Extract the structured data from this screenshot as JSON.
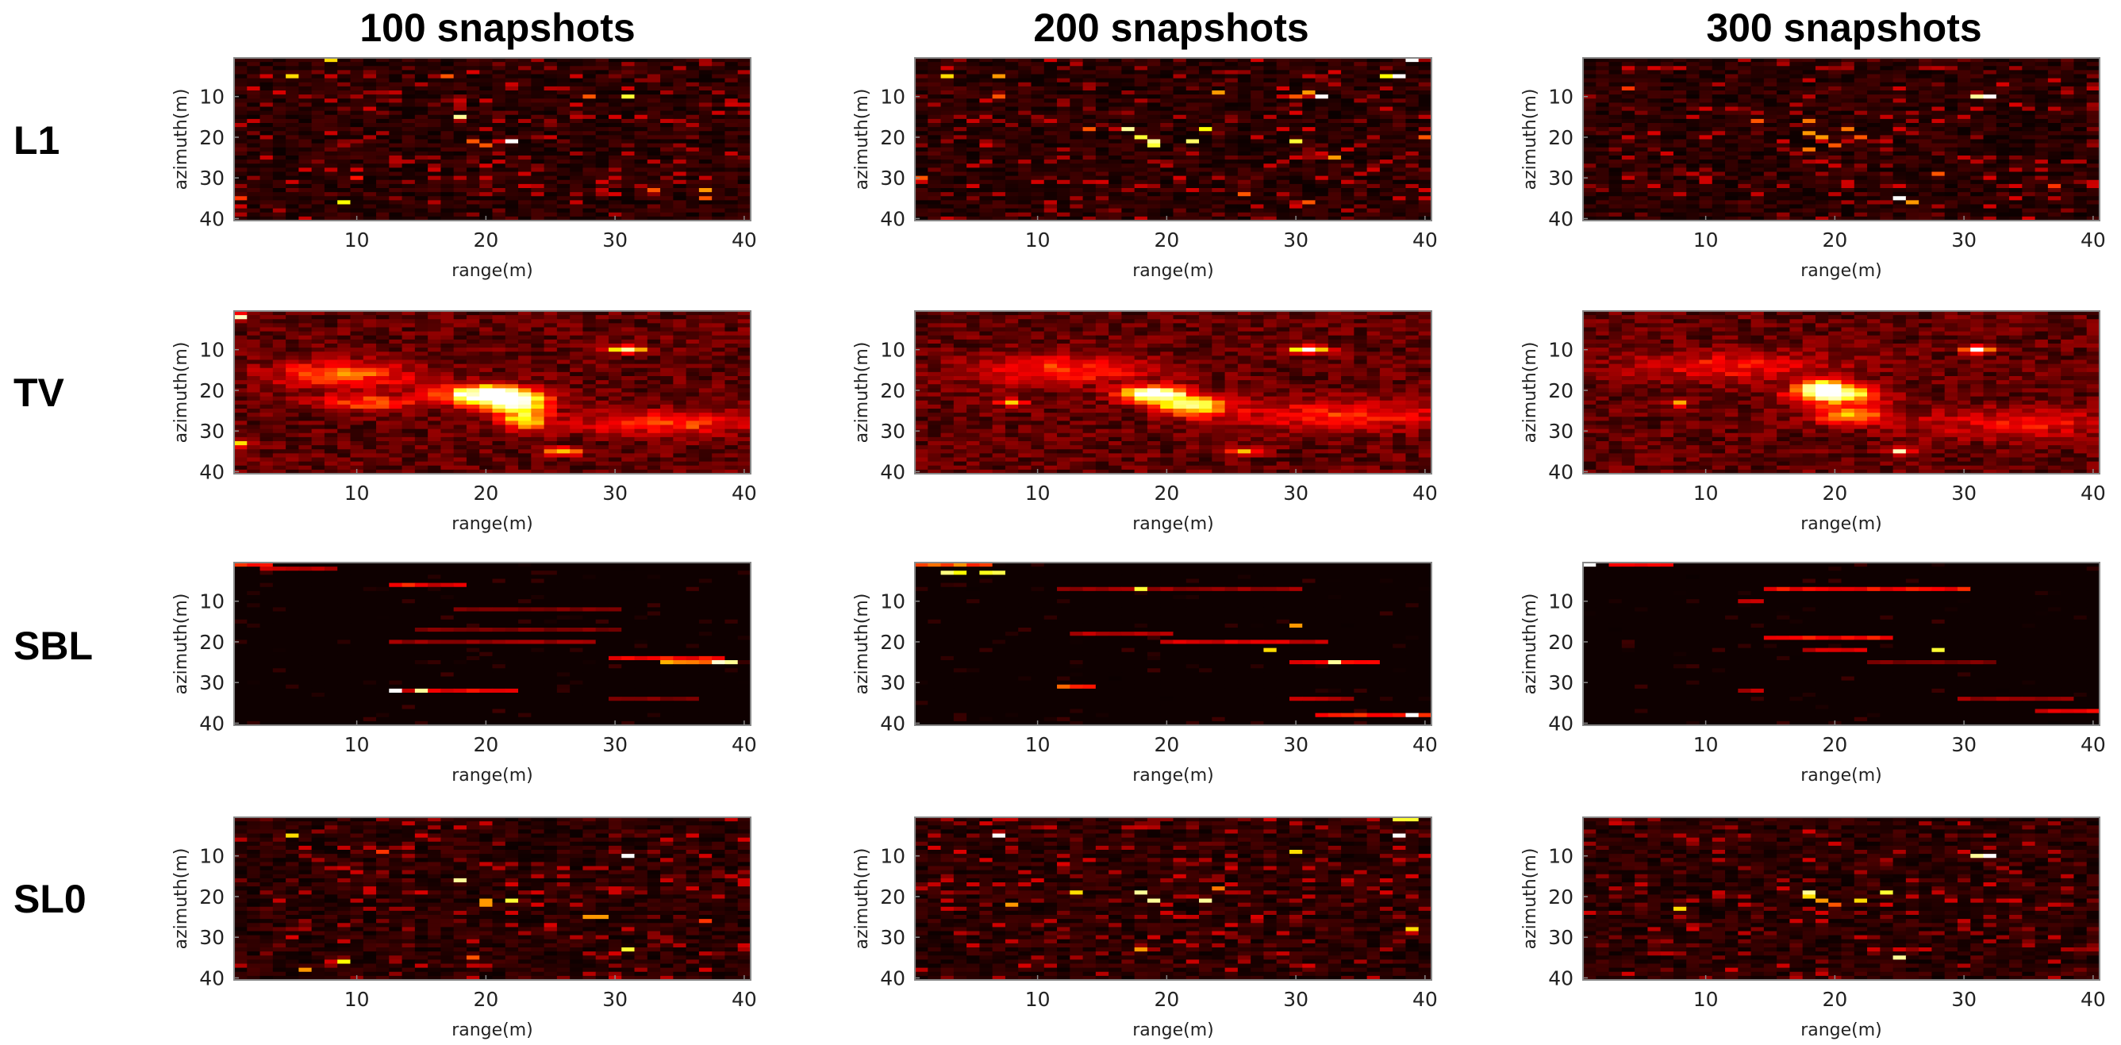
{
  "chart_data": {
    "type": "heatmap",
    "colormap": "hot",
    "grid": false,
    "column_titles": [
      "100 snapshots",
      "200 snapshots",
      "300 snapshots"
    ],
    "row_titles": [
      "L1",
      "TV",
      "SBL",
      "SL0"
    ],
    "xlabel": "range(m)",
    "ylabel": "azimuth(m)",
    "xlim": [
      1,
      40
    ],
    "ylim": [
      1,
      40
    ],
    "y_reversed": true,
    "xticks": [
      10,
      20,
      30,
      40
    ],
    "yticks": [
      10,
      20,
      30,
      40
    ],
    "value_range": [
      0,
      1
    ],
    "panels": [
      {
        "row": "L1",
        "column": "100 snapshots",
        "background": "sparse",
        "peaks": [
          [
            5,
            5,
            0.7
          ],
          [
            8,
            1,
            0.7
          ],
          [
            17,
            5,
            0.5
          ],
          [
            18,
            15,
            0.9
          ],
          [
            19,
            21,
            0.5
          ],
          [
            20,
            22,
            0.5
          ],
          [
            22,
            21,
            1.0
          ],
          [
            28,
            10,
            0.5
          ],
          [
            31,
            10,
            0.8
          ],
          [
            9,
            36,
            0.75
          ],
          [
            33,
            33,
            0.5
          ],
          [
            37,
            33,
            0.6
          ],
          [
            37,
            35,
            0.5
          ],
          [
            1,
            35,
            0.45
          ],
          [
            10,
            30,
            0.4
          ]
        ]
      },
      {
        "row": "L1",
        "column": "200 snapshots",
        "background": "sparse",
        "peaks": [
          [
            3,
            5,
            0.7
          ],
          [
            7,
            5,
            0.6
          ],
          [
            7,
            10,
            0.5
          ],
          [
            14,
            18,
            0.5
          ],
          [
            17,
            18,
            0.9
          ],
          [
            18,
            20,
            0.8
          ],
          [
            19,
            21,
            0.9
          ],
          [
            19,
            22,
            0.8
          ],
          [
            22,
            21,
            0.85
          ],
          [
            23,
            18,
            0.75
          ],
          [
            24,
            9,
            0.6
          ],
          [
            30,
            10,
            0.5
          ],
          [
            31,
            9,
            0.6
          ],
          [
            32,
            10,
            1.0
          ],
          [
            30,
            21,
            0.8
          ],
          [
            33,
            25,
            0.6
          ],
          [
            37,
            5,
            0.75
          ],
          [
            38,
            5,
            1.0
          ],
          [
            39,
            1,
            1.0
          ],
          [
            1,
            30,
            0.5
          ],
          [
            26,
            34,
            0.5
          ],
          [
            31,
            36,
            0.5
          ],
          [
            40,
            20,
            0.5
          ]
        ]
      },
      {
        "row": "L1",
        "column": "300 snapshots",
        "background": "sparse",
        "peaks": [
          [
            4,
            8,
            0.45
          ],
          [
            14,
            16,
            0.5
          ],
          [
            18,
            16,
            0.55
          ],
          [
            18,
            19,
            0.6
          ],
          [
            19,
            20,
            0.6
          ],
          [
            18,
            23,
            0.55
          ],
          [
            21,
            18,
            0.55
          ],
          [
            22,
            20,
            0.5
          ],
          [
            20,
            22,
            0.5
          ],
          [
            31,
            10,
            0.9
          ],
          [
            32,
            10,
            1.0
          ],
          [
            28,
            29,
            0.5
          ],
          [
            25,
            35,
            1.0
          ],
          [
            26,
            36,
            0.6
          ],
          [
            37,
            32,
            0.45
          ]
        ]
      },
      {
        "row": "TV",
        "column": "100 snapshots",
        "background": "smooth",
        "blobs": [
          [
            20,
            21,
            1.0,
            2.4,
            1.6
          ],
          [
            22,
            23,
            0.8,
            1.8,
            1.6
          ],
          [
            23,
            27,
            0.55,
            1.4,
            2.0
          ],
          [
            31,
            10,
            0.85,
            1.0,
            0.6
          ],
          [
            26,
            35,
            0.6,
            1.0,
            0.7
          ],
          [
            9,
            16,
            0.4,
            4.0,
            2.2
          ],
          [
            11,
            23,
            0.35,
            3.0,
            1.5
          ],
          [
            34,
            28,
            0.35,
            5.0,
            2.0
          ],
          [
            1,
            2,
            0.7,
            0.5,
            0.6
          ],
          [
            1,
            33,
            0.55,
            0.5,
            0.6
          ]
        ]
      },
      {
        "row": "TV",
        "column": "200 snapshots",
        "background": "smooth",
        "blobs": [
          [
            19,
            21,
            1.0,
            1.8,
            1.4
          ],
          [
            22,
            24,
            0.75,
            1.8,
            1.6
          ],
          [
            31,
            10,
            0.9,
            1.0,
            0.6
          ],
          [
            8,
            23,
            0.6,
            0.7,
            0.6
          ],
          [
            26,
            35,
            0.6,
            0.8,
            0.6
          ],
          [
            12,
            15,
            0.3,
            5.0,
            2.5
          ],
          [
            33,
            26,
            0.3,
            6.0,
            2.5
          ]
        ]
      },
      {
        "row": "TV",
        "column": "300 snapshots",
        "background": "smooth",
        "blobs": [
          [
            20,
            21,
            0.9,
            2.2,
            1.6
          ],
          [
            19,
            19,
            0.85,
            1.0,
            1.0
          ],
          [
            21,
            26,
            0.5,
            2.0,
            1.5
          ],
          [
            31,
            10,
            1.0,
            0.7,
            0.6
          ],
          [
            8,
            23,
            0.6,
            0.6,
            0.6
          ],
          [
            25,
            35,
            0.8,
            0.6,
            0.5
          ],
          [
            12,
            14,
            0.25,
            6.0,
            2.5
          ],
          [
            34,
            28,
            0.25,
            6.0,
            2.5
          ]
        ]
      },
      {
        "row": "SBL",
        "column": "100 snapshots",
        "background": "streaks",
        "streaks": [
          [
            1,
            3,
            1,
            0.5
          ],
          [
            3,
            8,
            2,
            0.3
          ],
          [
            13,
            14,
            6,
            0.45
          ],
          [
            15,
            18,
            6,
            0.35
          ],
          [
            18,
            30,
            12,
            0.2
          ],
          [
            15,
            30,
            17,
            0.2
          ],
          [
            13,
            28,
            20,
            0.25
          ],
          [
            30,
            38,
            24,
            0.45
          ],
          [
            34,
            37,
            25,
            0.7
          ],
          [
            38,
            39,
            25,
            1.0
          ],
          [
            13,
            22,
            32,
            0.4
          ],
          [
            13,
            13,
            32,
            1.0
          ],
          [
            15,
            15,
            32,
            0.9
          ],
          [
            30,
            36,
            34,
            0.2
          ]
        ]
      },
      {
        "row": "SBL",
        "column": "200 snapshots",
        "background": "streaks",
        "streaks": [
          [
            1,
            6,
            1,
            0.6
          ],
          [
            3,
            4,
            3,
            1.0
          ],
          [
            6,
            7,
            3,
            0.9
          ],
          [
            12,
            30,
            7,
            0.25
          ],
          [
            18,
            18,
            7,
            0.8
          ],
          [
            13,
            20,
            18,
            0.3
          ],
          [
            20,
            32,
            20,
            0.35
          ],
          [
            30,
            30,
            16,
            0.6
          ],
          [
            28,
            28,
            22,
            0.7
          ],
          [
            33,
            33,
            25,
            0.9
          ],
          [
            30,
            36,
            25,
            0.4
          ],
          [
            12,
            14,
            31,
            0.55
          ],
          [
            30,
            34,
            34,
            0.3
          ],
          [
            32,
            40,
            38,
            0.45
          ],
          [
            39,
            39,
            38,
            1.0
          ]
        ]
      },
      {
        "row": "SBL",
        "column": "300 snapshots",
        "background": "streaks",
        "streaks": [
          [
            1,
            1,
            1,
            1.0
          ],
          [
            3,
            7,
            1,
            0.45
          ],
          [
            15,
            30,
            7,
            0.45
          ],
          [
            13,
            14,
            10,
            0.3
          ],
          [
            15,
            24,
            19,
            0.45
          ],
          [
            18,
            22,
            22,
            0.35
          ],
          [
            28,
            28,
            22,
            0.8
          ],
          [
            23,
            32,
            25,
            0.2
          ],
          [
            13,
            14,
            32,
            0.3
          ],
          [
            30,
            38,
            34,
            0.25
          ],
          [
            36,
            40,
            37,
            0.4
          ]
        ]
      },
      {
        "row": "SL0",
        "column": "100 snapshots",
        "background": "sparse",
        "peaks": [
          [
            5,
            5,
            0.7
          ],
          [
            31,
            10,
            1.0
          ],
          [
            18,
            16,
            0.9
          ],
          [
            20,
            21,
            0.6
          ],
          [
            20,
            22,
            0.6
          ],
          [
            22,
            21,
            0.8
          ],
          [
            28,
            25,
            0.6
          ],
          [
            29,
            25,
            0.6
          ],
          [
            31,
            33,
            0.8
          ],
          [
            9,
            36,
            0.75
          ],
          [
            6,
            38,
            0.6
          ],
          [
            19,
            35,
            0.5
          ],
          [
            12,
            9,
            0.45
          ],
          [
            37,
            26,
            0.45
          ]
        ]
      },
      {
        "row": "SL0",
        "column": "200 snapshots",
        "background": "sparse",
        "peaks": [
          [
            7,
            5,
            1.0
          ],
          [
            38,
            1,
            0.8
          ],
          [
            39,
            1,
            0.8
          ],
          [
            38,
            5,
            1.0
          ],
          [
            18,
            19,
            0.9
          ],
          [
            19,
            21,
            0.9
          ],
          [
            23,
            21,
            0.9
          ],
          [
            13,
            19,
            0.7
          ],
          [
            30,
            9,
            0.7
          ],
          [
            39,
            28,
            0.7
          ],
          [
            8,
            22,
            0.6
          ],
          [
            18,
            33,
            0.6
          ],
          [
            24,
            18,
            0.55
          ]
        ]
      },
      {
        "row": "SL0",
        "column": "300 snapshots",
        "background": "sparse",
        "peaks": [
          [
            31,
            10,
            0.9
          ],
          [
            32,
            10,
            1.0
          ],
          [
            18,
            19,
            0.9
          ],
          [
            18,
            20,
            0.7
          ],
          [
            19,
            21,
            0.6
          ],
          [
            22,
            21,
            0.7
          ],
          [
            24,
            19,
            0.8
          ],
          [
            8,
            23,
            0.7
          ],
          [
            25,
            35,
            0.9
          ],
          [
            20,
            22,
            0.5
          ]
        ]
      }
    ]
  }
}
